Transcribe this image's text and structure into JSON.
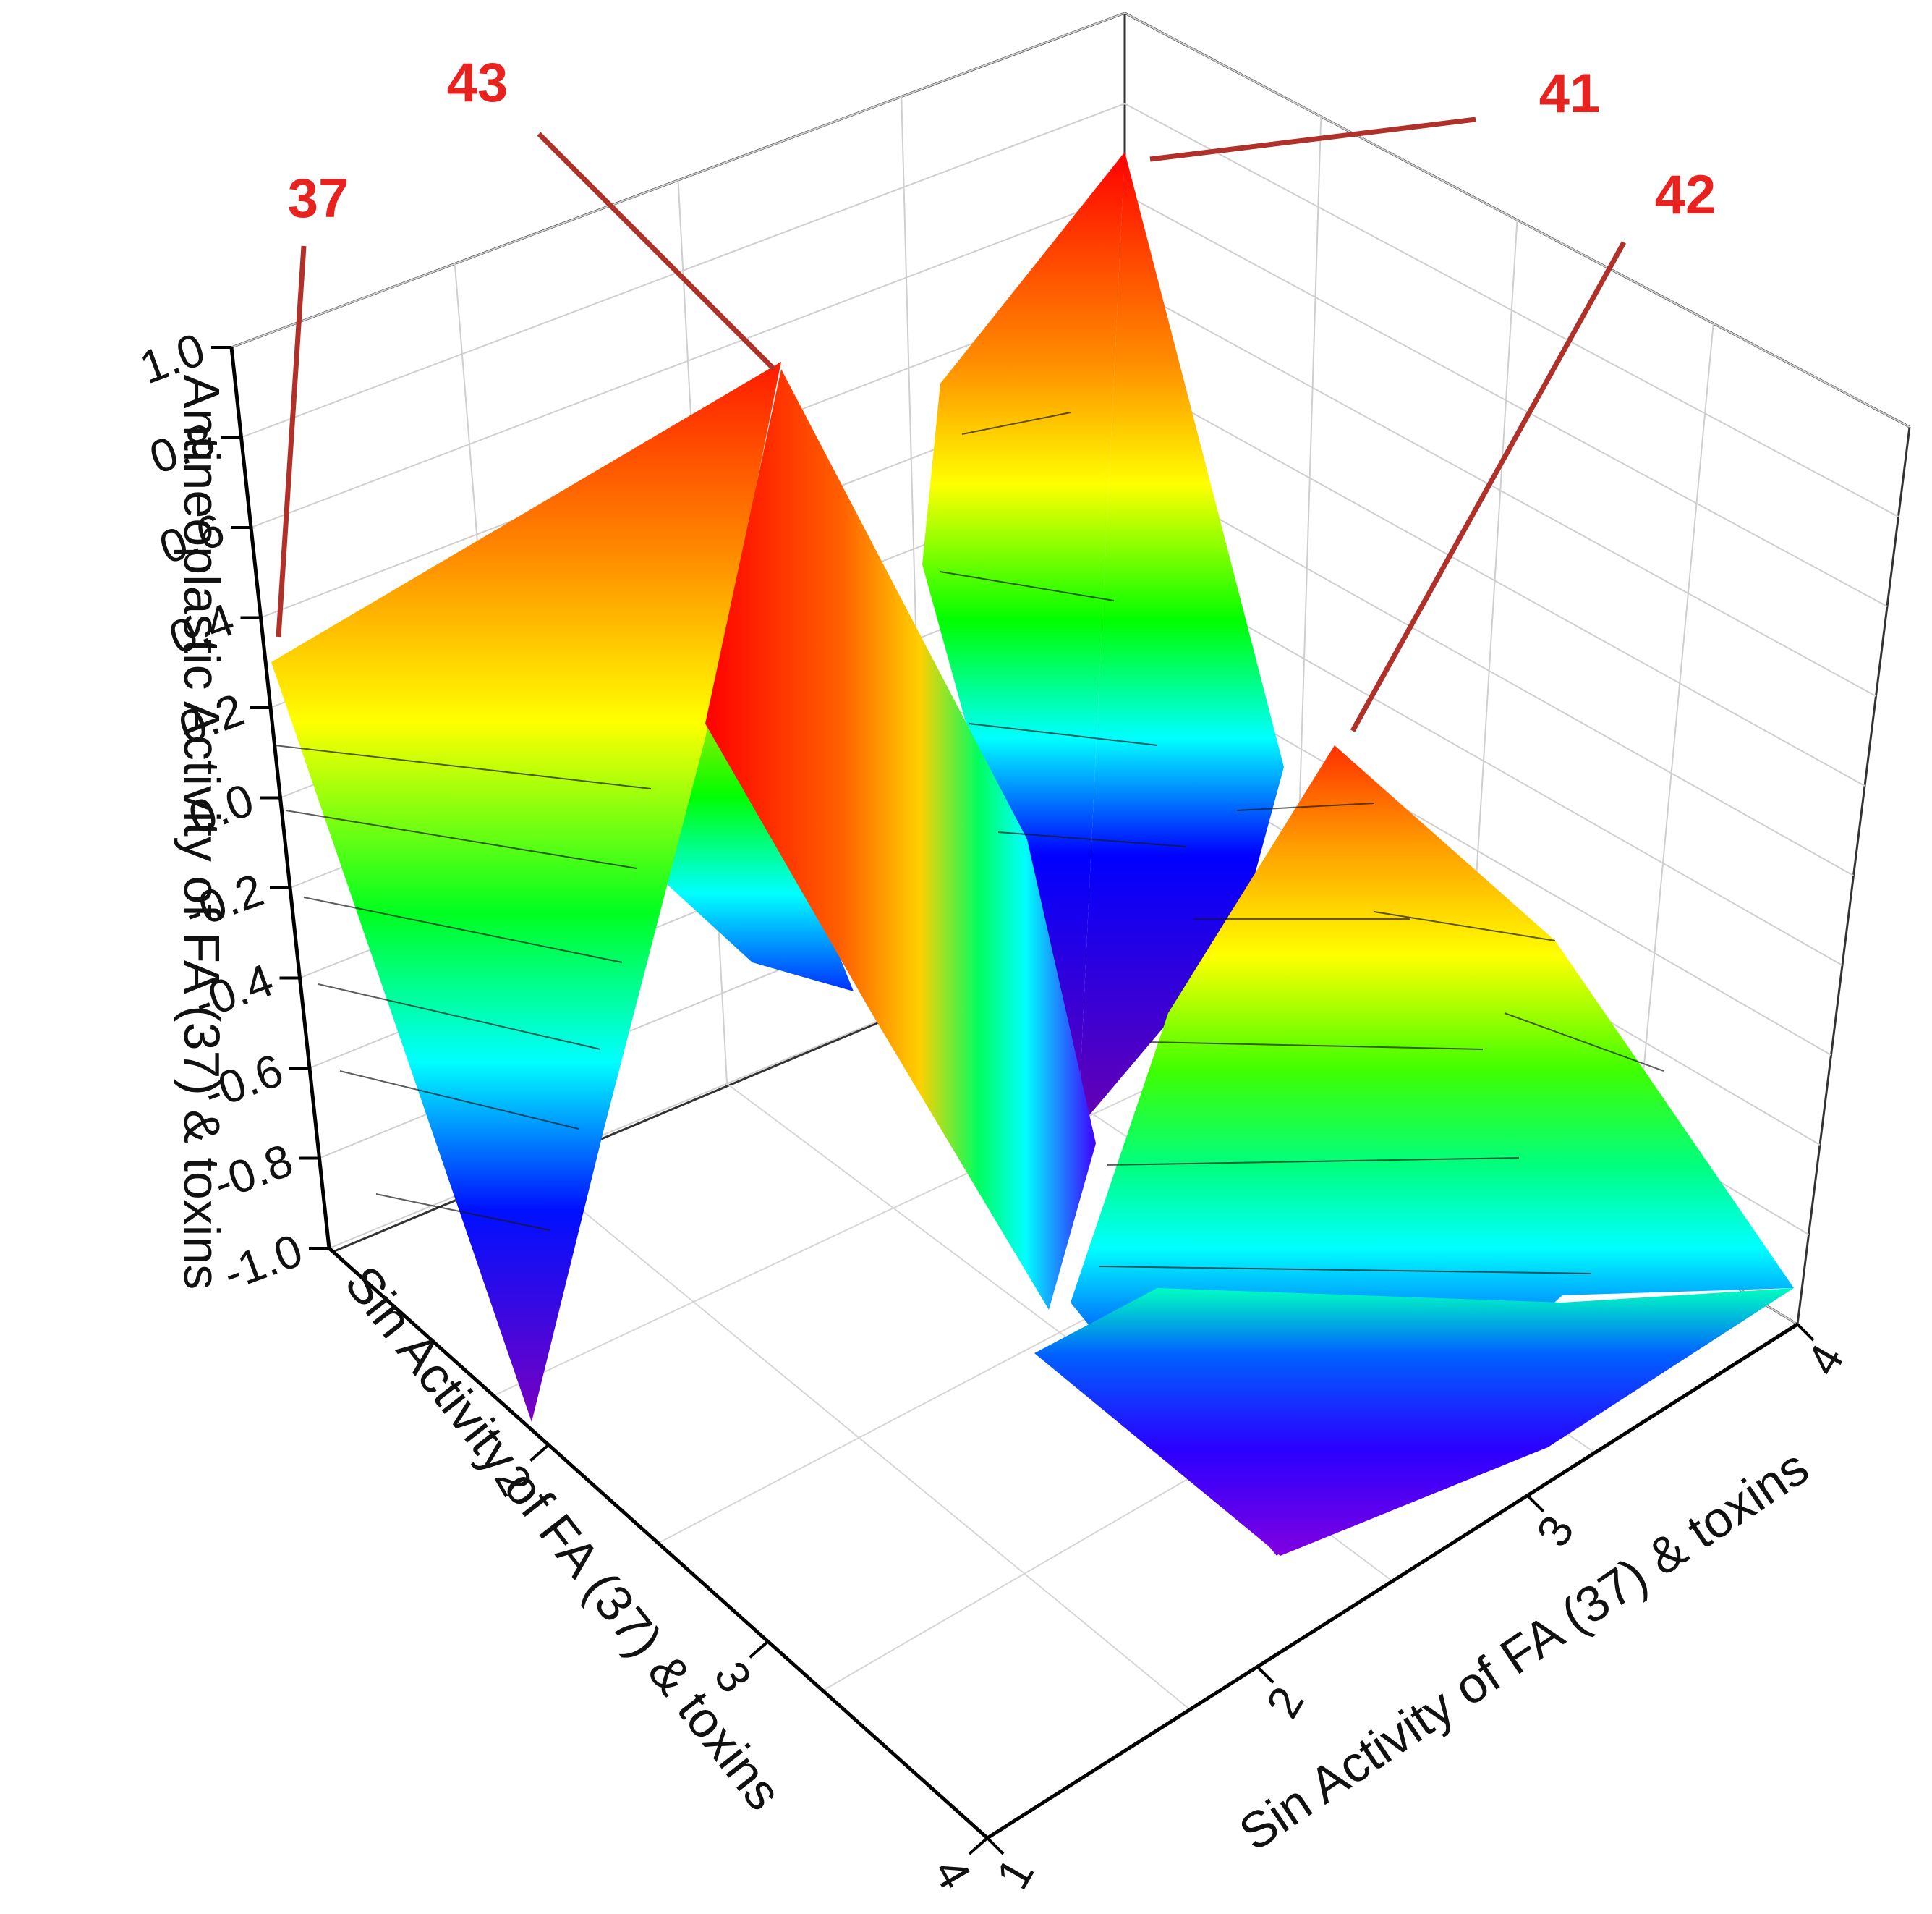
{
  "chart_data": {
    "type": "3d-surface",
    "title": "",
    "zlabel": "Antineoplastic Activity of FA (37) & toxins",
    "xlabel": "Sin Activity of FA (37) & toxins",
    "ylabel": "Sin Activity of FA (37) & toxins",
    "zlim": [
      -1.0,
      1.0
    ],
    "xlim": [
      1,
      4
    ],
    "ylim": [
      1,
      4
    ],
    "z_ticks": [
      "1.0",
      "0.8",
      "0.6",
      "0.4",
      "0.2",
      "0.0",
      "-0.2",
      "-0.4",
      "-0.6",
      "-0.8",
      "-1.0"
    ],
    "x_ticks": [
      "2",
      "3",
      "4"
    ],
    "y_ticks": [
      "1",
      "2",
      "3",
      "4"
    ],
    "grid": true,
    "colormap": [
      "#5a00b0",
      "#0000ff",
      "#00ffff",
      "#00ff00",
      "#ffff00",
      "#ff8000",
      "#ff0000",
      "#7a0000"
    ],
    "grid_values": [
      [
        0.35,
        0.98,
        0.02,
        0.1
      ],
      [
        -0.98,
        -0.55,
        -0.7,
        -0.92
      ],
      [
        -0.4,
        -0.45,
        -0.9,
        -0.97
      ],
      [
        -0.95,
        1.0,
        0.18,
        -0.5
      ]
    ],
    "annotations": [
      {
        "label": "37",
        "x": 1,
        "y": 1,
        "z": 0.35
      },
      {
        "label": "43",
        "x": 1,
        "y": 2,
        "z": 0.98
      },
      {
        "label": "41",
        "x": 4,
        "y": 2,
        "z": 1.0
      },
      {
        "label": "42",
        "x": 4,
        "y": 3,
        "z": 0.18
      }
    ]
  }
}
